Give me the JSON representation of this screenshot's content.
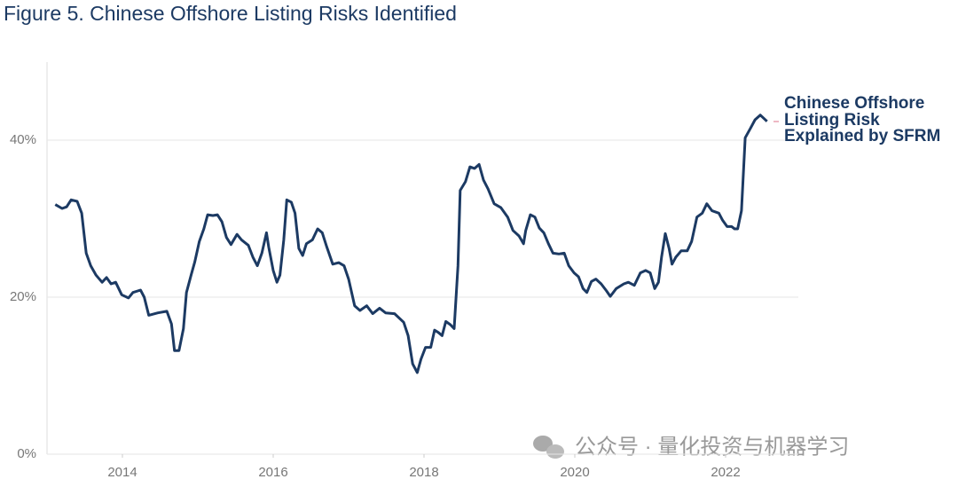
{
  "chart_data": {
    "type": "line",
    "title": "Figure 5. Chinese Offshore Listing Risks Identified",
    "watermark": "公众号 · 量化投资与机器学习",
    "x": [
      2013.11,
      2013.2,
      2013.26,
      2013.32,
      2013.4,
      2013.46,
      2013.52,
      2013.58,
      2013.65,
      2013.73,
      2013.79,
      2013.85,
      2013.91,
      2013.99,
      2014.08,
      2014.14,
      2014.24,
      2014.29,
      2014.35,
      2014.47,
      2014.59,
      2014.65,
      2014.69,
      2014.75,
      2014.81,
      2014.85,
      2014.91,
      2014.96,
      2015.02,
      2015.08,
      2015.13,
      2015.2,
      2015.26,
      2015.32,
      2015.38,
      2015.44,
      2015.52,
      2015.58,
      2015.67,
      2015.73,
      2015.79,
      2015.85,
      2015.91,
      2015.94,
      2016.0,
      2016.05,
      2016.09,
      2016.14,
      2016.18,
      2016.24,
      2016.29,
      2016.34,
      2016.39,
      2016.44,
      2016.52,
      2016.59,
      2016.65,
      2016.71,
      2016.79,
      2016.87,
      2016.94,
      2017.0,
      2017.08,
      2017.15,
      2017.24,
      2017.32,
      2017.41,
      2017.49,
      2017.61,
      2017.73,
      2017.79,
      2017.85,
      2017.91,
      2017.96,
      2018.02,
      2018.09,
      2018.14,
      2018.19,
      2018.24,
      2018.29,
      2018.35,
      2018.4,
      2018.45,
      2018.48,
      2018.55,
      2018.61,
      2018.67,
      2018.73,
      2018.79,
      2018.85,
      2018.93,
      2019.02,
      2019.11,
      2019.18,
      2019.26,
      2019.32,
      2019.35,
      2019.41,
      2019.47,
      2019.53,
      2019.59,
      2019.65,
      2019.71,
      2019.79,
      2019.86,
      2019.92,
      2019.99,
      2020.05,
      2020.11,
      2020.16,
      2020.22,
      2020.28,
      2020.35,
      2020.42,
      2020.47,
      2020.55,
      2020.65,
      2020.71,
      2020.79,
      2020.87,
      2020.94,
      2021.0,
      2021.06,
      2021.11,
      2021.15,
      2021.2,
      2021.25,
      2021.29,
      2021.34,
      2021.41,
      2021.49,
      2021.55,
      2021.62,
      2021.69,
      2021.75,
      2021.82,
      2021.91,
      2021.96,
      2022.02,
      2022.08,
      2022.12,
      2022.16,
      2022.21,
      2022.26,
      2022.33,
      2022.39,
      2022.46,
      2022.55
    ],
    "series": [
      {
        "name": "Chinese Offshore Listing Risk Explained by SFRM",
        "color": "#1c3a63",
        "values": [
          31.8,
          31.3,
          31.5,
          32.4,
          32.2,
          30.7,
          25.6,
          24.0,
          22.8,
          21.9,
          22.5,
          21.7,
          21.9,
          20.3,
          19.9,
          20.6,
          20.9,
          20.0,
          17.7,
          18.0,
          18.2,
          16.6,
          13.2,
          13.2,
          16.0,
          20.6,
          22.8,
          24.5,
          27.1,
          28.7,
          30.5,
          30.4,
          30.5,
          29.6,
          27.6,
          26.7,
          28.0,
          27.3,
          26.6,
          25.1,
          24.0,
          25.6,
          28.2,
          26.4,
          23.4,
          21.9,
          22.8,
          27.3,
          32.4,
          32.1,
          30.7,
          26.2,
          25.3,
          26.8,
          27.3,
          28.7,
          28.2,
          26.4,
          24.2,
          24.4,
          24.0,
          22.3,
          18.9,
          18.3,
          18.9,
          17.9,
          18.6,
          18.0,
          17.9,
          16.8,
          15.1,
          11.5,
          10.4,
          12.1,
          13.6,
          13.6,
          15.8,
          15.5,
          15.1,
          16.9,
          16.5,
          16.0,
          24.0,
          33.6,
          34.7,
          36.6,
          36.4,
          36.9,
          34.9,
          33.8,
          31.9,
          31.4,
          30.2,
          28.5,
          27.8,
          26.8,
          28.5,
          30.5,
          30.2,
          28.8,
          28.2,
          26.8,
          25.6,
          25.5,
          25.6,
          24.0,
          23.1,
          22.6,
          21.1,
          20.6,
          22.0,
          22.3,
          21.7,
          20.8,
          20.1,
          21.1,
          21.7,
          21.9,
          21.5,
          23.1,
          23.4,
          23.1,
          21.1,
          21.9,
          25.1,
          28.1,
          26.2,
          24.2,
          25.1,
          25.9,
          25.9,
          27.1,
          30.2,
          30.7,
          31.9,
          31.0,
          30.7,
          29.8,
          29.0,
          29.0,
          28.7,
          28.7,
          31.0,
          40.3,
          41.5,
          42.6,
          43.2,
          42.4
        ]
      }
    ],
    "xlim": [
      2013,
      2023
    ],
    "xticks": [
      2014,
      2016,
      2018,
      2020,
      2022
    ],
    "ylim": [
      0,
      50
    ],
    "yticks": [
      {
        "value": 0,
        "label": "0%"
      },
      {
        "value": 20,
        "label": "20%"
      },
      {
        "value": 40,
        "label": "40%"
      }
    ],
    "grid": true
  }
}
